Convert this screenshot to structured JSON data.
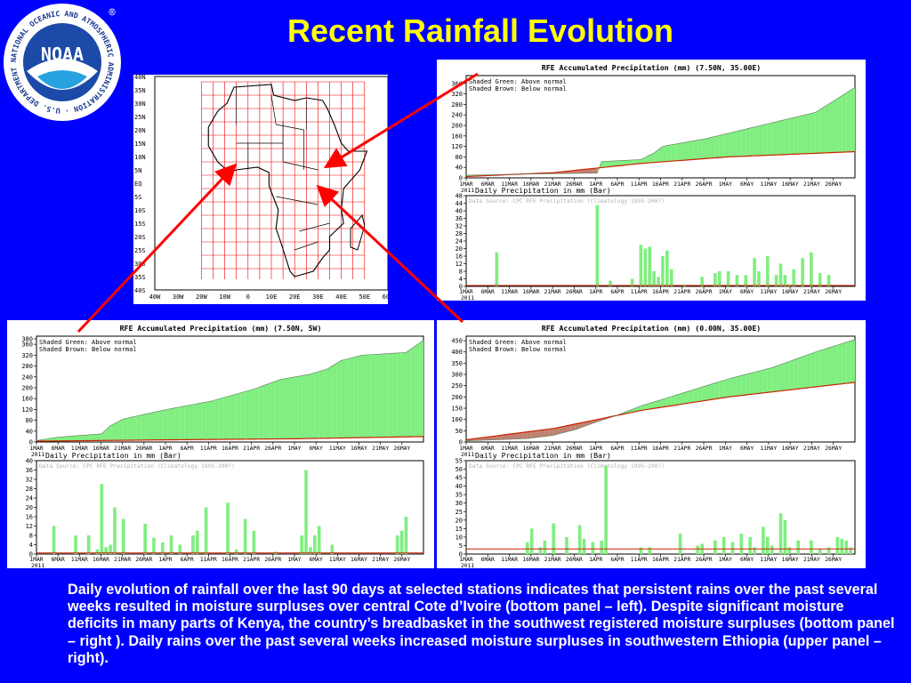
{
  "slide": {
    "title": "Recent Rainfall Evolution",
    "caption": "Daily evolution of rainfall over the last 90 days at selected stations indicates  that persistent rains over the past several weeks resulted in moisture surpluses over central Cote d’Ivoire (bottom panel – left).  Despite significant moisture deficits in many parts of Kenya, the country’s breadbasket in the southwest registered moisture surpluses (bottom panel – right ).  Daily rains over the past several weeks increased moisture surpluses in southwestern Ethiopia (upper panel – right).",
    "logo": {
      "inner_text": "NOAA",
      "ring_text": "NATIONAL OCEANIC AND ATMOSPHERIC ADMINISTRATION · U.S. DEPARTMENT OF COMMERCE",
      "registered": "®"
    },
    "colors": {
      "background": "#0000ff",
      "title": "#ffff00",
      "arrow": "#ff0000",
      "surplus": "#80ee80",
      "deficit": "#c08070",
      "normal_line": "#cc2200"
    }
  },
  "map": {
    "lat_labels": [
      "40N",
      "35N",
      "30N",
      "25N",
      "20N",
      "15N",
      "10N",
      "5N",
      "EQ",
      "5S",
      "10S",
      "15S",
      "20S",
      "25S",
      "30S",
      "35S",
      "40S"
    ],
    "lon_labels": [
      "40W",
      "30W",
      "20W",
      "10W",
      "0",
      "10E",
      "20E",
      "30E",
      "40E",
      "50E",
      "60E"
    ]
  },
  "chart_data": [
    {
      "id": "ethiopia",
      "type": "area",
      "title": "RFE Accumulated Precipitation (mm)  (7.50N, 35.00E)",
      "legend": [
        "Shaded Green:  Above normal",
        "Shaded Brown:  Below normal"
      ],
      "yticks": [
        0,
        40,
        80,
        120,
        160,
        200,
        240,
        280,
        320,
        360
      ],
      "ylim": [
        0,
        390
      ],
      "xtick_labels": [
        "1MAR",
        "6MAR",
        "11MAR",
        "16MAR",
        "21MAR",
        "26MAR",
        "1APR",
        "6APR",
        "11APR",
        "16APR",
        "21APR",
        "26APR",
        "1MAY",
        "6MAY",
        "11MAY",
        "16MAY",
        "21MAY",
        "26MAY"
      ],
      "year": "2011",
      "n_days": 90,
      "actual_breakpoints": [
        [
          0,
          10
        ],
        [
          15,
          15
        ],
        [
          30,
          18
        ],
        [
          31,
          62
        ],
        [
          40,
          70
        ],
        [
          43,
          95
        ],
        [
          45,
          120
        ],
        [
          55,
          150
        ],
        [
          70,
          210
        ],
        [
          80,
          250
        ],
        [
          89,
          345
        ]
      ],
      "normal_breakpoints": [
        [
          0,
          5
        ],
        [
          20,
          20
        ],
        [
          40,
          55
        ],
        [
          60,
          80
        ],
        [
          89,
          100
        ]
      ],
      "daily_title": "Daily Precipitation in mm (Bar)",
      "daily_source": "Data Source: CPC RFE Precipitation (Climatology 1995-2007)",
      "daily_yticks": [
        0,
        4,
        8,
        12,
        16,
        20,
        24,
        28,
        32,
        36,
        40,
        44,
        48
      ],
      "daily_ylim": [
        0,
        48
      ],
      "daily_normal": 0.5,
      "daily": [
        [
          7,
          18
        ],
        [
          30,
          43
        ],
        [
          33,
          3
        ],
        [
          38,
          4
        ],
        [
          40,
          22
        ],
        [
          41,
          20
        ],
        [
          42,
          21
        ],
        [
          43,
          8
        ],
        [
          44,
          5
        ],
        [
          45,
          16
        ],
        [
          46,
          19
        ],
        [
          47,
          9
        ],
        [
          50,
          1
        ],
        [
          54,
          5
        ],
        [
          57,
          7
        ],
        [
          58,
          8
        ],
        [
          60,
          8
        ],
        [
          62,
          6
        ],
        [
          64,
          6
        ],
        [
          66,
          15
        ],
        [
          67,
          8
        ],
        [
          69,
          16
        ],
        [
          71,
          6
        ],
        [
          72,
          12
        ],
        [
          73,
          6
        ],
        [
          74,
          1
        ],
        [
          75,
          9
        ],
        [
          77,
          15
        ],
        [
          79,
          18
        ],
        [
          81,
          7
        ],
        [
          83,
          6
        ]
      ]
    },
    {
      "id": "cote_divoire",
      "type": "area",
      "title": "RFE Accumulated Precipitation (mm)  (7.50N, 5W)",
      "legend": [
        "Shaded Green:  Above normal",
        "Shaded Brown:  Below normal"
      ],
      "yticks": [
        0,
        40,
        80,
        120,
        160,
        200,
        240,
        280,
        320,
        360,
        380
      ],
      "ylim": [
        0,
        390
      ],
      "xtick_labels": [
        "1MAR",
        "6MAR",
        "11MAR",
        "16MAR",
        "21MAR",
        "26MAR",
        "1APR",
        "6APR",
        "11APR",
        "16APR",
        "21APR",
        "26APR",
        "1MAY",
        "6MAY",
        "11MAY",
        "16MAY",
        "21MAY",
        "26MAY"
      ],
      "year": "2011",
      "n_days": 90,
      "actual_breakpoints": [
        [
          0,
          5
        ],
        [
          5,
          18
        ],
        [
          15,
          30
        ],
        [
          17,
          60
        ],
        [
          20,
          85
        ],
        [
          30,
          120
        ],
        [
          40,
          150
        ],
        [
          50,
          195
        ],
        [
          56,
          230
        ],
        [
          63,
          250
        ],
        [
          67,
          270
        ],
        [
          70,
          300
        ],
        [
          75,
          320
        ],
        [
          85,
          330
        ],
        [
          89,
          375
        ]
      ],
      "normal_breakpoints": [
        [
          0,
          3
        ],
        [
          30,
          8
        ],
        [
          60,
          12
        ],
        [
          89,
          20
        ]
      ],
      "daily_title": "Daily Precipitation in mm (Bar)",
      "daily_source": "Data Source: CPC RFE Precipitation (Climatology 1995-2007)",
      "daily_yticks": [
        0,
        4,
        8,
        12,
        16,
        20,
        24,
        28,
        32,
        36,
        40
      ],
      "daily_ylim": [
        0,
        40
      ],
      "daily_normal": 0.5,
      "daily": [
        [
          4,
          12
        ],
        [
          9,
          8
        ],
        [
          12,
          8
        ],
        [
          14,
          2
        ],
        [
          15,
          30
        ],
        [
          16,
          3
        ],
        [
          17,
          4
        ],
        [
          18,
          20
        ],
        [
          20,
          15
        ],
        [
          25,
          13
        ],
        [
          27,
          7
        ],
        [
          29,
          5
        ],
        [
          31,
          8
        ],
        [
          33,
          4
        ],
        [
          36,
          8
        ],
        [
          37,
          10
        ],
        [
          39,
          20
        ],
        [
          44,
          22
        ],
        [
          46,
          2
        ],
        [
          48,
          15
        ],
        [
          50,
          10
        ],
        [
          55,
          1
        ],
        [
          61,
          8
        ],
        [
          62,
          36
        ],
        [
          63,
          3
        ],
        [
          64,
          8
        ],
        [
          65,
          12
        ],
        [
          68,
          4
        ],
        [
          83,
          8
        ],
        [
          84,
          10
        ],
        [
          85,
          16
        ]
      ]
    },
    {
      "id": "kenya",
      "type": "area",
      "title": "RFE Accumulated Precipitation (mm)  (0.00N, 35.00E)",
      "legend": [
        "Shaded Green:  Above normal",
        "Shaded Brown:  Below normal"
      ],
      "yticks": [
        0,
        50,
        100,
        150,
        200,
        250,
        300,
        350,
        400,
        450
      ],
      "ylim": [
        0,
        470
      ],
      "xtick_labels": [
        "1MAR",
        "6MAR",
        "11MAR",
        "16MAR",
        "21MAR",
        "26MAR",
        "1APR",
        "6APR",
        "11APR",
        "16APR",
        "21APR",
        "26APR",
        "1MAY",
        "6MAY",
        "11MAY",
        "16MAY",
        "21MAY",
        "26MAY"
      ],
      "year": "2011",
      "n_days": 90,
      "actual_breakpoints": [
        [
          0,
          5
        ],
        [
          14,
          15
        ],
        [
          20,
          30
        ],
        [
          25,
          55
        ],
        [
          30,
          90
        ],
        [
          34,
          115
        ],
        [
          40,
          160
        ],
        [
          50,
          220
        ],
        [
          60,
          280
        ],
        [
          70,
          330
        ],
        [
          80,
          400
        ],
        [
          89,
          455
        ]
      ],
      "normal_breakpoints": [
        [
          0,
          10
        ],
        [
          20,
          60
        ],
        [
          40,
          140
        ],
        [
          60,
          200
        ],
        [
          89,
          265
        ]
      ],
      "daily_title": "Daily Precipitation in mm (Bar)",
      "daily_source": "Data Source: CPC RFE Precipitation (Climatology 1995-2007)",
      "daily_yticks": [
        0,
        5,
        10,
        15,
        20,
        25,
        30,
        35,
        40,
        45,
        50,
        55
      ],
      "daily_ylim": [
        0,
        55
      ],
      "daily_normal": 3,
      "daily": [
        [
          14,
          7
        ],
        [
          15,
          15
        ],
        [
          17,
          4
        ],
        [
          18,
          8
        ],
        [
          20,
          18
        ],
        [
          23,
          10
        ],
        [
          26,
          17
        ],
        [
          27,
          9
        ],
        [
          29,
          7
        ],
        [
          31,
          8
        ],
        [
          32,
          52
        ],
        [
          40,
          4
        ],
        [
          42,
          4
        ],
        [
          49,
          12
        ],
        [
          53,
          5
        ],
        [
          54,
          6
        ],
        [
          57,
          8
        ],
        [
          59,
          10
        ],
        [
          61,
          7
        ],
        [
          63,
          12
        ],
        [
          65,
          10
        ],
        [
          66,
          4
        ],
        [
          68,
          16
        ],
        [
          69,
          10
        ],
        [
          70,
          5
        ],
        [
          72,
          24
        ],
        [
          73,
          20
        ],
        [
          74,
          4
        ],
        [
          76,
          8
        ],
        [
          79,
          8
        ],
        [
          81,
          3
        ],
        [
          83,
          4
        ],
        [
          85,
          10
        ],
        [
          86,
          9
        ],
        [
          87,
          8
        ],
        [
          88,
          4
        ]
      ]
    }
  ]
}
